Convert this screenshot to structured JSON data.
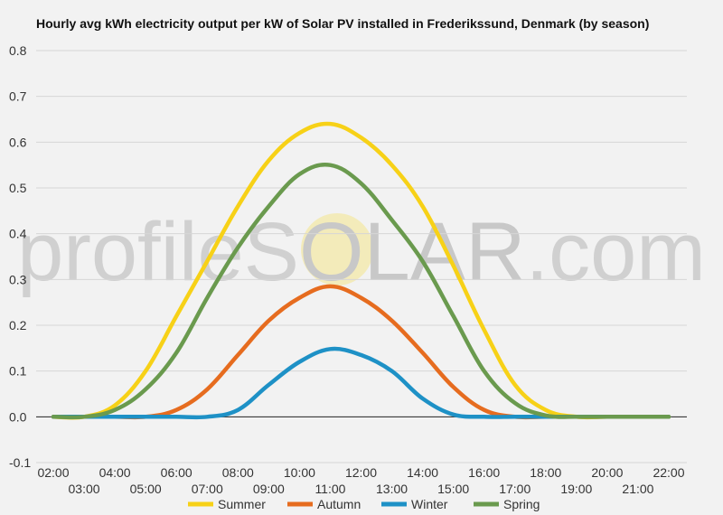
{
  "title": "Hourly avg kWh electricity output per kW of Solar PV installed in Frederikssund, Denmark (by season)",
  "watermark": {
    "left": "profileS",
    "middle": "OLAR",
    "right": ".com"
  },
  "chart_data": {
    "type": "line",
    "title": "Hourly avg kWh electricity output per kW of Solar PV installed in Frederikssund, Denmark (by season)",
    "x": [
      2,
      3,
      4,
      5,
      6,
      7,
      8,
      9,
      10,
      11,
      12,
      13,
      14,
      15,
      16,
      17,
      18,
      19,
      20,
      21,
      22
    ],
    "xticks_top": [
      "02:00",
      "04:00",
      "06:00",
      "08:00",
      "10:00",
      "12:00",
      "14:00",
      "16:00",
      "18:00",
      "20:00",
      "22:00"
    ],
    "xticks_bottom": [
      "03:00",
      "05:00",
      "07:00",
      "09:00",
      "11:00",
      "13:00",
      "15:00",
      "17:00",
      "19:00",
      "21:00"
    ],
    "ylim": [
      -0.1,
      0.8
    ],
    "yticks": [
      "0.8",
      "0.7",
      "0.6",
      "0.5",
      "0.4",
      "0.3",
      "0.2",
      "0.1",
      "0.0",
      "-0.1"
    ],
    "grid": true,
    "legend_position": "bottom",
    "series": [
      {
        "name": "Summer",
        "color": "#f7d117",
        "values": [
          0,
          0,
          0.025,
          0.1,
          0.22,
          0.34,
          0.46,
          0.56,
          0.62,
          0.64,
          0.61,
          0.55,
          0.46,
          0.33,
          0.19,
          0.07,
          0.015,
          0,
          0,
          0,
          0
        ]
      },
      {
        "name": "Autumn",
        "color": "#e66c1f",
        "values": [
          0,
          0,
          0,
          0,
          0.015,
          0.06,
          0.135,
          0.21,
          0.26,
          0.285,
          0.26,
          0.21,
          0.14,
          0.065,
          0.015,
          0,
          0,
          0,
          0,
          0,
          0
        ]
      },
      {
        "name": "Winter",
        "color": "#1e91c6",
        "values": [
          0,
          0,
          0,
          0,
          0,
          0,
          0.015,
          0.07,
          0.12,
          0.148,
          0.135,
          0.1,
          0.04,
          0.005,
          0,
          0,
          0,
          0,
          0,
          0,
          0
        ]
      },
      {
        "name": "Spring",
        "color": "#6a9a4e",
        "values": [
          0,
          0,
          0.015,
          0.06,
          0.14,
          0.26,
          0.37,
          0.46,
          0.53,
          0.55,
          0.51,
          0.43,
          0.34,
          0.22,
          0.1,
          0.03,
          0.003,
          0,
          0,
          0,
          0
        ]
      }
    ]
  }
}
